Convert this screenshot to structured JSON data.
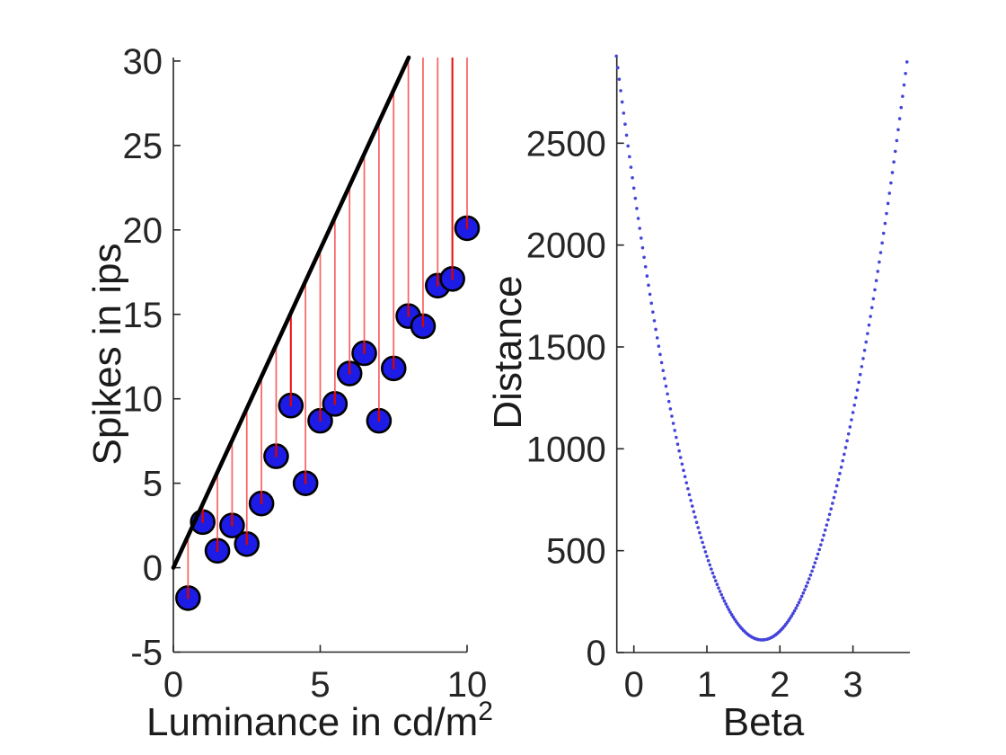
{
  "figure": {
    "background": "#ffffff",
    "axis_color": "#262626",
    "text_color": "#262626"
  },
  "chart_data": [
    {
      "type": "scatter",
      "title": "",
      "xlabel": "Luminance in cd/m",
      "xlabel_superscript": "2",
      "ylabel": "Spikes in ips",
      "xlim": [
        0,
        10
      ],
      "ylim": [
        -5,
        30
      ],
      "xticks": [
        0,
        5,
        10
      ],
      "yticks": [
        -5,
        0,
        5,
        10,
        15,
        20,
        25,
        30
      ],
      "grid": false,
      "box": false,
      "legend": null,
      "series": [
        {
          "name": "measured-spikes",
          "type": "scatter",
          "marker": "filled-circle",
          "marker_fill": "#1c1ce6",
          "marker_edge": "#000000",
          "x": [
            0.5,
            1.0,
            1.5,
            2.0,
            2.5,
            3.0,
            3.5,
            4.0,
            4.5,
            5.0,
            5.5,
            6.0,
            6.5,
            7.0,
            7.5,
            8.0,
            8.5,
            9.0,
            9.5,
            10.0
          ],
          "y": [
            -1.8,
            2.7,
            1.0,
            2.5,
            1.4,
            3.8,
            6.6,
            9.6,
            5.0,
            8.7,
            9.7,
            11.5,
            12.7,
            8.7,
            11.8,
            14.9,
            14.3,
            16.7,
            17.1,
            20.1
          ]
        },
        {
          "name": "model-fit-line",
          "type": "line",
          "color": "#000000",
          "slope": 3.77,
          "intercept": 0,
          "clipped_at_top": true
        },
        {
          "name": "residual-lines",
          "type": "vertical-segments",
          "color": "#fa6161",
          "strong_color": "#e81414",
          "stub_color": "#d40505",
          "strong_x": [
            4.0,
            9.5
          ],
          "description": "red vertical segment from each data point up to the fit line, clipped at axis top"
        }
      ]
    },
    {
      "type": "line-dotted",
      "title": "",
      "xlabel": "Beta",
      "ylabel": "Distance",
      "xlim": [
        -0.24,
        3.79
      ],
      "ylim": [
        0,
        2935
      ],
      "xticks": [
        0,
        1,
        2,
        3
      ],
      "yticks": [
        0,
        500,
        1000,
        1500,
        2000,
        2500
      ],
      "grid": false,
      "box": false,
      "legend": null,
      "series": [
        {
          "name": "distance-vs-beta-curve",
          "type": "dotted-curve",
          "color": "#4343d9",
          "model": "distance = a*(beta - beta_min)^2 + d_min",
          "a": 720,
          "beta_min": 1.755,
          "d_min": 62,
          "beta_start": -0.24,
          "beta_end": 3.79,
          "beta_step": 0.02,
          "curve_minimum": {
            "beta": 1.755,
            "distance": 62
          }
        }
      ]
    }
  ]
}
